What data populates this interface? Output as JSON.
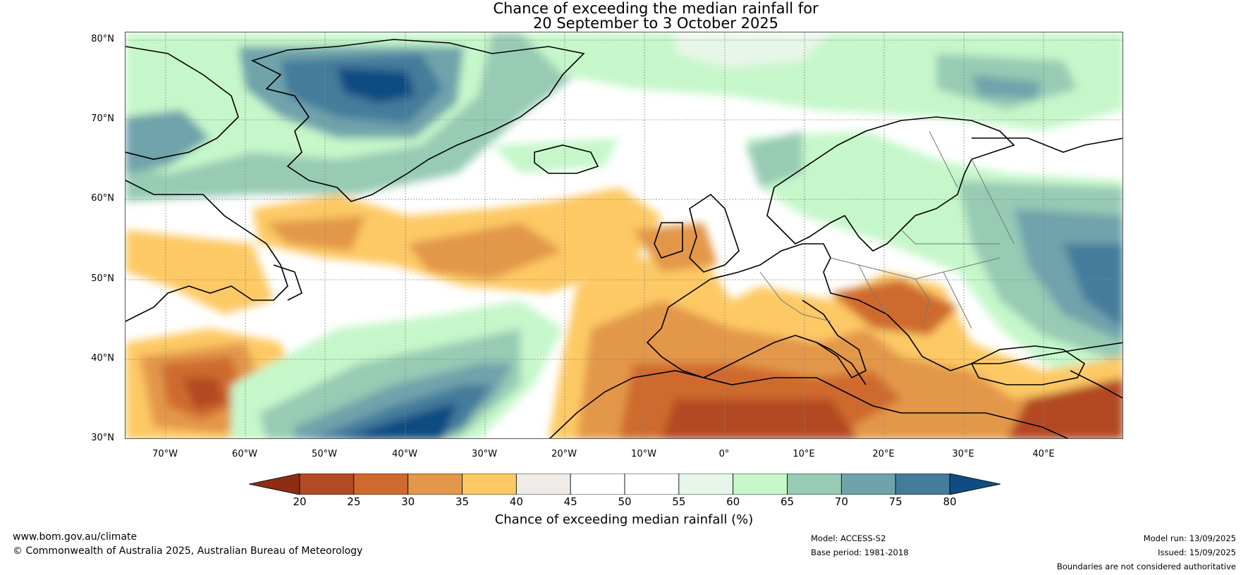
{
  "title": {
    "line1": "Chance of exceeding the median rainfall for",
    "line2": "20 September to 3 October 2025"
  },
  "latitude_labels": [
    "80°N",
    "70°N",
    "60°N",
    "50°N",
    "40°N",
    "30°N"
  ],
  "longitude_labels": [
    "70°W",
    "60°W",
    "50°W",
    "40°W",
    "30°W",
    "20°W",
    "10°W",
    "0°",
    "10°E",
    "20°E",
    "30°E",
    "40°E"
  ],
  "colorbar": {
    "label": "Chance of exceeding median rainfall (%)",
    "ticks": [
      "20",
      "25",
      "30",
      "35",
      "40",
      "45",
      "50",
      "55",
      "60",
      "65",
      "70",
      "75",
      "80"
    ],
    "colors": [
      "#8c2d14",
      "#b24a24",
      "#cf6a2e",
      "#e3974a",
      "#fdc965",
      "#f0ebe7",
      "#ffffff",
      "#ffffff",
      "#e8f6e9",
      "#c6f7ca",
      "#97cbb4",
      "#6fa3ab",
      "#457b9b",
      "#0f4c81"
    ]
  },
  "footer": {
    "website": "www.bom.gov.au/climate",
    "copyright": "© Commonwealth of Australia 2025, Australian Bureau of Meteorology",
    "model": "Model: ACCESS-S2",
    "base_period": "Base period: 1981-2018",
    "model_run": "Model run: 13/09/2025",
    "issued": "Issued: 15/09/2025",
    "disclaimer": "Boundaries are not considered authoritative"
  }
}
